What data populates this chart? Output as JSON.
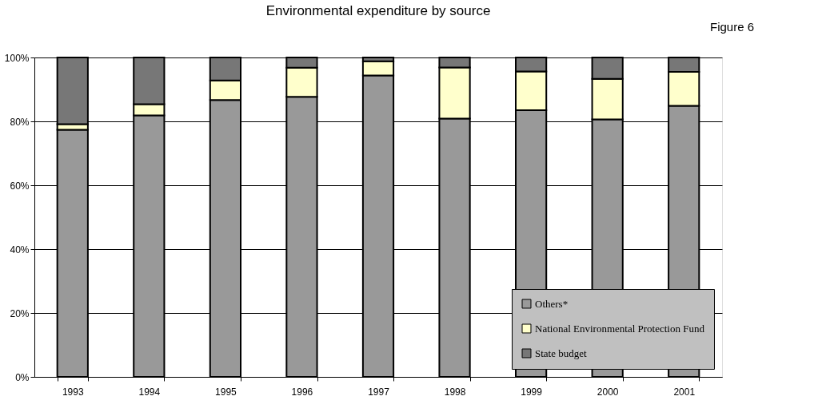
{
  "chart_data": {
    "type": "bar",
    "title": "Environmental expenditure by source",
    "annotations": [
      "Figure 6"
    ],
    "categories": [
      "1993",
      "1994",
      "1995",
      "1996",
      "1997",
      "1998",
      "1999",
      "2000",
      "2001"
    ],
    "stacked": true,
    "series": [
      {
        "name": "Others*",
        "color": "#999999",
        "values": [
          77.4,
          81.9,
          86.7,
          87.7,
          94.4,
          80.9,
          83.5,
          80.6,
          84.9
        ]
      },
      {
        "name": "National Environmental Protection Fund",
        "color": "#ffffcc",
        "values": [
          1.7,
          3.5,
          6.1,
          9.1,
          4.4,
          16.0,
          12.1,
          12.7,
          10.6
        ]
      },
      {
        "name": "State budget",
        "color": "#777777",
        "values": [
          20.9,
          14.6,
          7.2,
          3.2,
          1.2,
          3.1,
          4.4,
          6.7,
          4.5
        ]
      }
    ],
    "ylim": [
      0,
      100
    ],
    "yticks": [
      {
        "value": 0,
        "label": "0%"
      },
      {
        "value": 20,
        "label": "20%"
      },
      {
        "value": 40,
        "label": "40%"
      },
      {
        "value": 60,
        "label": "60%"
      },
      {
        "value": 80,
        "label": "80%"
      },
      {
        "value": 100,
        "label": "100%"
      }
    ],
    "grid": "y",
    "legend": "bottom right"
  }
}
